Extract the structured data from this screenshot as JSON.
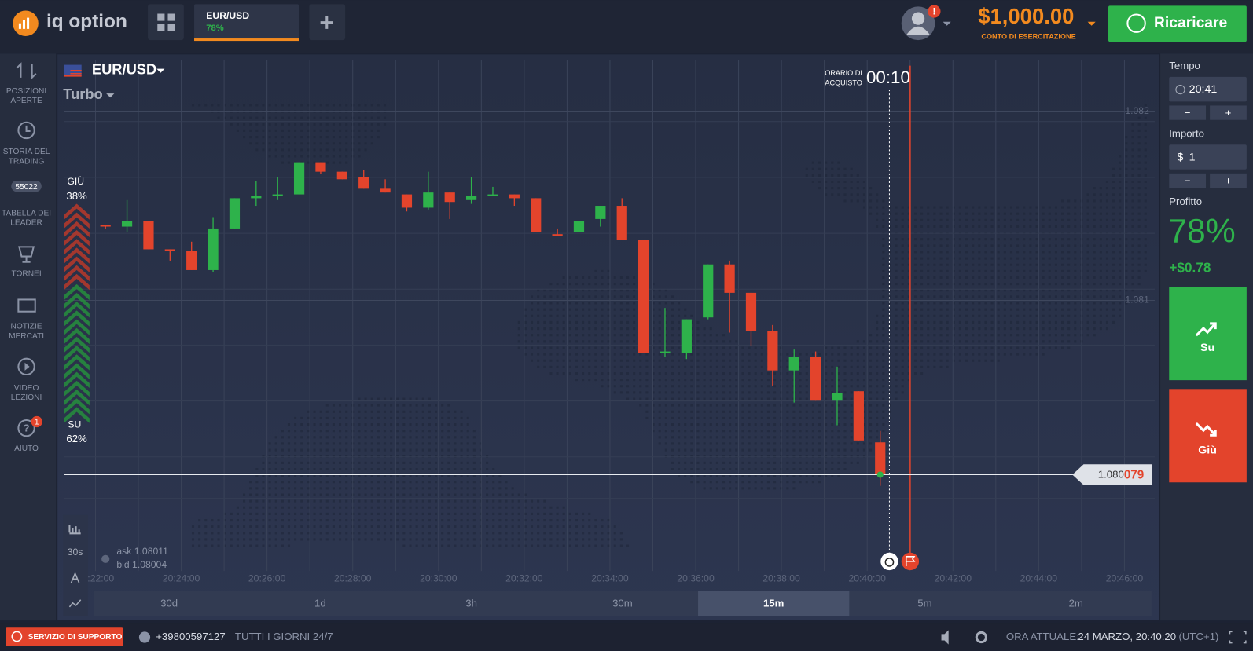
{
  "header": {
    "logo": "iq option",
    "tab": {
      "pair": "EUR/USD",
      "profit": "78%"
    },
    "alert": "!",
    "balance": "$1,000.00",
    "account": "CONTO DI ESERCITAZIONE",
    "deposit": "Ricaricare"
  },
  "nav": [
    {
      "lines": [
        "POSIZIONI",
        "APERTE"
      ]
    },
    {
      "lines": [
        "STORIA DEL",
        "TRADING"
      ]
    },
    {
      "lines": [
        "TABELLA DEI",
        "LEADER"
      ],
      "badge": "55022"
    },
    {
      "lines": [
        "TORNEI"
      ]
    },
    {
      "lines": [
        "NOTIZIE",
        "MERCATI"
      ]
    },
    {
      "lines": [
        "VIDEO",
        "LEZIONI"
      ]
    },
    {
      "lines": [
        "AIUTO"
      ],
      "badge": "1"
    }
  ],
  "chart": {
    "asset": "EUR/USD",
    "mode": "Turbo",
    "purchase_label": [
      "ORARIO DI",
      "ACQUISTO"
    ],
    "countdown": "00:10",
    "sentiment": {
      "down": {
        "label": "GIÙ",
        "value": 38,
        "value_label": "38%"
      },
      "up": {
        "label": "SU",
        "value": 62,
        "value_label": "62%"
      }
    },
    "ylim": [
      1.07957,
      1.08227
    ],
    "yticks": [
      1.082,
      1.081
    ],
    "xticks": [
      "20:22:00",
      "20:24:00",
      "20:26:00",
      "20:28:00",
      "20:30:00",
      "20:32:00",
      "20:34:00",
      "20:36:00",
      "20:38:00",
      "20:40:00",
      "20:42:00",
      "20:44:00",
      "20:46:00"
    ],
    "candles": [
      {
        "o": 1.0814,
        "h": 1.0814,
        "l": 1.08138,
        "c": 1.08139
      },
      {
        "o": 1.08139,
        "h": 1.08153,
        "l": 1.08136,
        "c": 1.08142
      },
      {
        "o": 1.08142,
        "h": 1.08142,
        "l": 1.08127,
        "c": 1.08127
      },
      {
        "o": 1.08127,
        "h": 1.08127,
        "l": 1.08121,
        "c": 1.08126
      },
      {
        "o": 1.08126,
        "h": 1.08131,
        "l": 1.08116,
        "c": 1.08116
      },
      {
        "o": 1.08116,
        "h": 1.08144,
        "l": 1.08115,
        "c": 1.08138
      },
      {
        "o": 1.08138,
        "h": 1.08154,
        "l": 1.08138,
        "c": 1.08154
      },
      {
        "o": 1.08154,
        "h": 1.08163,
        "l": 1.0815,
        "c": 1.08155
      },
      {
        "o": 1.08155,
        "h": 1.08165,
        "l": 1.08153,
        "c": 1.08156
      },
      {
        "o": 1.08156,
        "h": 1.08173,
        "l": 1.08156,
        "c": 1.08173
      },
      {
        "o": 1.08173,
        "h": 1.08173,
        "l": 1.08167,
        "c": 1.08168
      },
      {
        "o": 1.08168,
        "h": 1.08168,
        "l": 1.08164,
        "c": 1.08164
      },
      {
        "o": 1.08165,
        "h": 1.08169,
        "l": 1.08159,
        "c": 1.08159
      },
      {
        "o": 1.08159,
        "h": 1.08164,
        "l": 1.08157,
        "c": 1.08157
      },
      {
        "o": 1.08156,
        "h": 1.08156,
        "l": 1.08147,
        "c": 1.08149
      },
      {
        "o": 1.08149,
        "h": 1.08168,
        "l": 1.08148,
        "c": 1.08157
      },
      {
        "o": 1.08157,
        "h": 1.08157,
        "l": 1.08143,
        "c": 1.08152
      },
      {
        "o": 1.08153,
        "h": 1.08165,
        "l": 1.08151,
        "c": 1.08155
      },
      {
        "o": 1.08155,
        "h": 1.0816,
        "l": 1.08155,
        "c": 1.08156
      },
      {
        "o": 1.08156,
        "h": 1.08156,
        "l": 1.0815,
        "c": 1.08154
      },
      {
        "o": 1.08154,
        "h": 1.08154,
        "l": 1.08136,
        "c": 1.08136
      },
      {
        "o": 1.08135,
        "h": 1.08138,
        "l": 1.08134,
        "c": 1.08134
      },
      {
        "o": 1.08136,
        "h": 1.08142,
        "l": 1.08136,
        "c": 1.08142
      },
      {
        "o": 1.08143,
        "h": 1.0815,
        "l": 1.08139,
        "c": 1.0815
      },
      {
        "o": 1.0815,
        "h": 1.08154,
        "l": 1.08132,
        "c": 1.08132
      },
      {
        "o": 1.08132,
        "h": 1.08132,
        "l": 1.08072,
        "c": 1.08072
      },
      {
        "o": 1.08072,
        "h": 1.08096,
        "l": 1.0807,
        "c": 1.08073
      },
      {
        "o": 1.08072,
        "h": 1.0809,
        "l": 1.08069,
        "c": 1.0809
      },
      {
        "o": 1.08091,
        "h": 1.08119,
        "l": 1.0809,
        "c": 1.08119
      },
      {
        "o": 1.08119,
        "h": 1.08121,
        "l": 1.08083,
        "c": 1.08104
      },
      {
        "o": 1.08104,
        "h": 1.08104,
        "l": 1.08076,
        "c": 1.08084
      },
      {
        "o": 1.08084,
        "h": 1.08087,
        "l": 1.08055,
        "c": 1.08063
      },
      {
        "o": 1.08063,
        "h": 1.08074,
        "l": 1.08046,
        "c": 1.0807
      },
      {
        "o": 1.0807,
        "h": 1.08073,
        "l": 1.08047,
        "c": 1.08047
      },
      {
        "o": 1.08047,
        "h": 1.08065,
        "l": 1.08034,
        "c": 1.08051
      },
      {
        "o": 1.08052,
        "h": 1.08052,
        "l": 1.08026,
        "c": 1.08026
      },
      {
        "o": 1.08025,
        "h": 1.08031,
        "l": 1.08002,
        "c": 1.08008
      }
    ],
    "current_price": {
      "value": 1.080079,
      "label_main": "1.080",
      "label_tail": "079"
    },
    "ask": "ask 1.08011",
    "bid": "bid 1.08004",
    "tool_period": "30s",
    "timeframes": [
      "30d",
      "1d",
      "3h",
      "30m",
      "15m",
      "5m",
      "2m"
    ],
    "active_timeframe": 4
  },
  "panel": {
    "time_label": "Tempo",
    "time": "20:41",
    "minus": "−",
    "plus": "+",
    "amount_label": "Importo",
    "currency": "$",
    "amount": "1",
    "profit_label": "Profitto",
    "profit_pct": "78%",
    "profit_value": "+$0.78",
    "up": "Su",
    "down": "Giù"
  },
  "footer": {
    "support": "SERVIZIO DI SUPPORTO",
    "phone": "+39800597127",
    "hours": "TUTTI I GIORNI 24/7",
    "time_label": "ORA ATTUALE:",
    "time": "24 MARZO, 20:40:20",
    "tz": "(UTC+1)"
  }
}
